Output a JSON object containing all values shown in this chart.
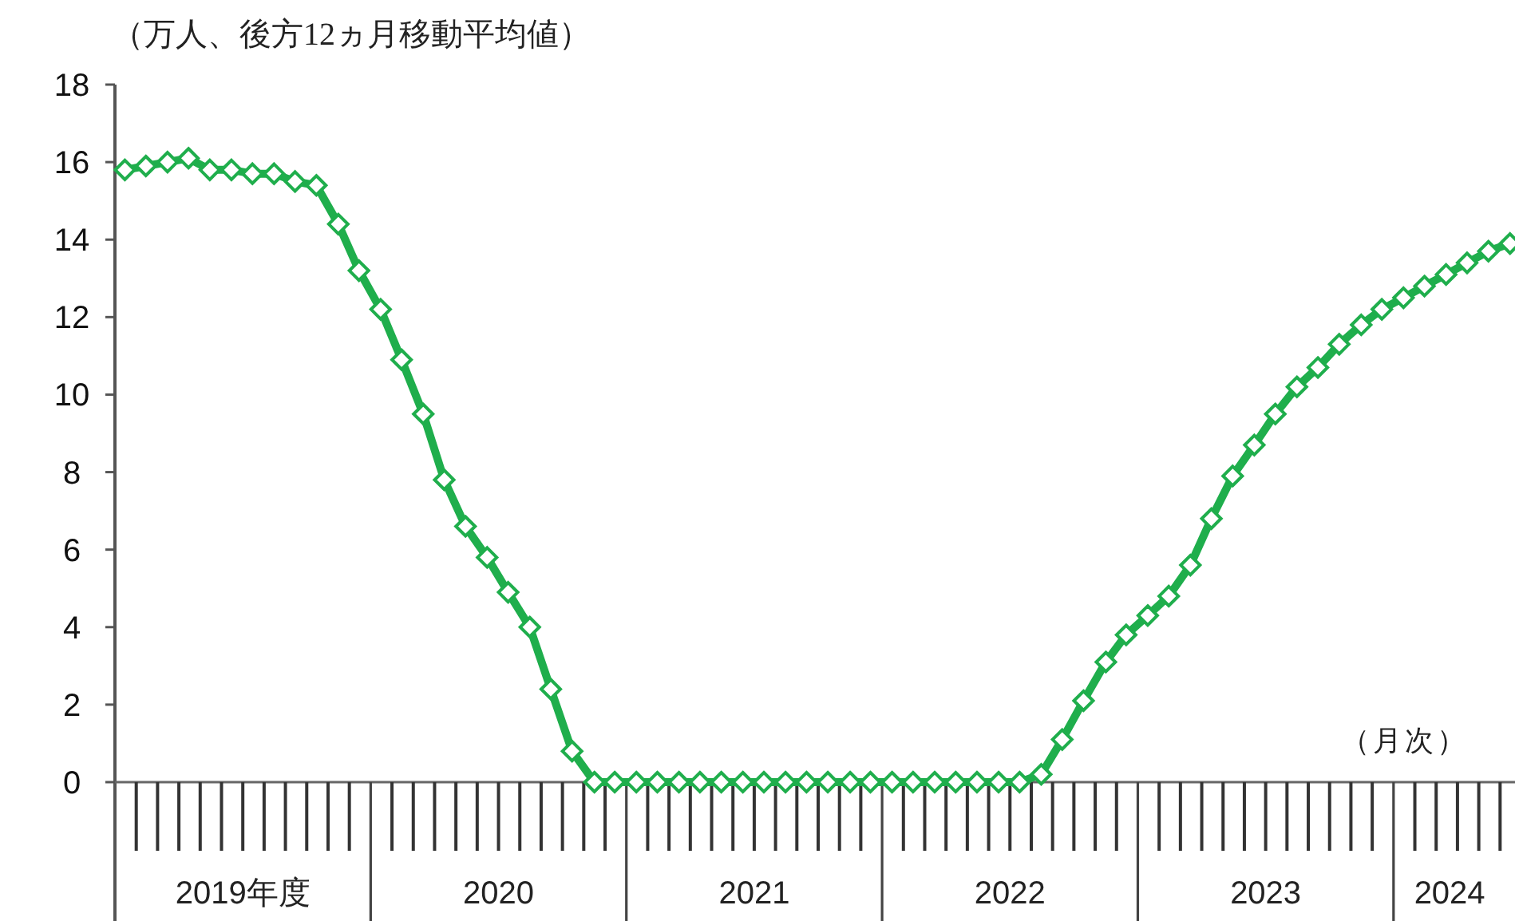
{
  "chart_data": {
    "type": "line",
    "title": "（万人、後方12ヵ月移動平均値）",
    "annotations": [
      "（月次）"
    ],
    "x": [
      "2019-04-15",
      "2019-05-15",
      "2019-06-15",
      "2019-07-15",
      "2019-08-15",
      "2019-09-15",
      "2019-10-15",
      "2019-11-15",
      "2019-12-15",
      "2020-01-15",
      "2020-02-15",
      "2020-03-15",
      "2020-04-15",
      "2020-05-15",
      "2020-06-15",
      "2020-07-15",
      "2020-08-15",
      "2020-09-15",
      "2020-10-15",
      "2020-11-15",
      "2020-12-15",
      "2021-01-15",
      "2021-02-15",
      "2021-03-15",
      "2021-04-15",
      "2021-05-15",
      "2021-06-15",
      "2021-07-15",
      "2021-08-15",
      "2021-09-15",
      "2021-10-15",
      "2021-11-15",
      "2021-12-15",
      "2022-01-15",
      "2022-02-15",
      "2022-03-15",
      "2022-04-15",
      "2022-05-15",
      "2022-06-15",
      "2022-07-15",
      "2022-08-15",
      "2022-09-15",
      "2022-10-15",
      "2022-11-15",
      "2022-12-15",
      "2023-01-15",
      "2023-02-15",
      "2023-03-15",
      "2023-04-15",
      "2023-05-15",
      "2023-06-15",
      "2023-07-15",
      "2023-08-15",
      "2023-09-15",
      "2023-10-15",
      "2023-11-15",
      "2023-12-15",
      "2024-01-15",
      "2024-02-15",
      "2024-03-15",
      "2024-04-15",
      "2024-05-15",
      "2024-06-15",
      "2024-07-15",
      "2024-08-15",
      "2024-09-15"
    ],
    "values": [
      15.8,
      15.9,
      16.0,
      16.1,
      15.8,
      15.8,
      15.7,
      15.7,
      15.5,
      15.4,
      14.4,
      13.2,
      12.2,
      10.9,
      9.5,
      7.8,
      6.6,
      5.8,
      4.9,
      4.0,
      2.4,
      0.8,
      0,
      0,
      0,
      0,
      0,
      0,
      0,
      0,
      0,
      0,
      0,
      0,
      0,
      0,
      0,
      0,
      0,
      0,
      0,
      0,
      0,
      0.2,
      1.1,
      2.1,
      3.1,
      3.8,
      4.3,
      4.8,
      5.6,
      6.8,
      7.9,
      8.7,
      9.5,
      10.2,
      10.7,
      11.3,
      11.8,
      12.2,
      12.5,
      12.8,
      13.1,
      13.4,
      13.7,
      13.9
    ],
    "color": "#1fae4c",
    "marker": "diamond",
    "xlim": [
      "2019-04-01",
      "2024-09-22"
    ],
    "xticks": [
      {
        "value": "2019-10-01",
        "label": "2019年度"
      },
      {
        "value": "2020-10-01",
        "label": "2020"
      },
      {
        "value": "2021-10-01",
        "label": "2021"
      },
      {
        "value": "2022-10-01",
        "label": "2022"
      },
      {
        "value": "2023-10-01",
        "label": "2023"
      },
      {
        "value": "2024-06-20",
        "label": "2024"
      }
    ],
    "ylim": [
      0,
      18
    ],
    "yticks": [
      0,
      2,
      4,
      6,
      8,
      10,
      12,
      14,
      16,
      18
    ]
  }
}
